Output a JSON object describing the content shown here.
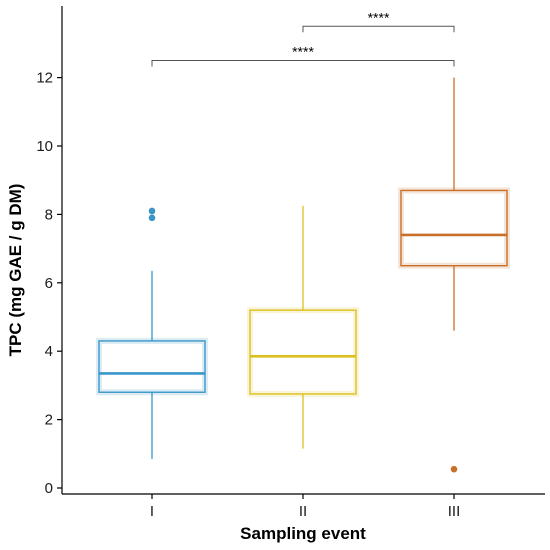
{
  "chart_data": {
    "type": "box",
    "xlabel": "Sampling event",
    "ylabel": "TPC (mg GAE / g DM)",
    "ylim": [
      0,
      14
    ],
    "yticks": [
      0,
      2,
      4,
      6,
      8,
      10,
      12
    ],
    "grid": false,
    "categories": [
      "I",
      "II",
      "III"
    ],
    "boxes": [
      {
        "category": "I",
        "whisker_low": 0.85,
        "q1": 2.8,
        "median": 3.35,
        "q3": 4.3,
        "whisker_high": 6.35,
        "outliers": [
          7.9,
          8.1
        ],
        "color": "#3a96c8"
      },
      {
        "category": "II",
        "whisker_low": 1.15,
        "q1": 2.75,
        "median": 3.85,
        "q3": 5.2,
        "whisker_high": 8.25,
        "outliers": [],
        "color": "#dcc020"
      },
      {
        "category": "III",
        "whisker_low": 4.6,
        "q1": 6.5,
        "median": 7.4,
        "q3": 8.7,
        "whisker_high": 12.0,
        "outliers": [
          0.55
        ],
        "color": "#c8702a"
      }
    ],
    "significance": [
      {
        "from": "I",
        "to": "III",
        "y": 12.5,
        "label": "****"
      },
      {
        "from": "II",
        "to": "III",
        "y": 13.5,
        "label": "****"
      }
    ]
  }
}
